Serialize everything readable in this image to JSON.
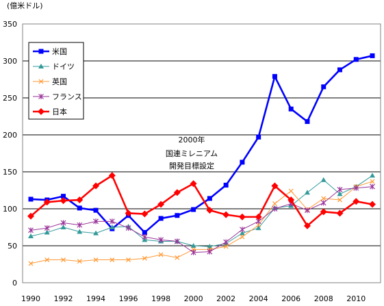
{
  "chart_data": {
    "type": "line",
    "title": "",
    "ylabel": "(億米ドル)",
    "xlabel": "",
    "x": [
      1990,
      1991,
      1992,
      1993,
      1994,
      1995,
      1996,
      1997,
      1998,
      1999,
      2000,
      2001,
      2002,
      2003,
      2004,
      2005,
      2006,
      2007,
      2008,
      2009,
      2010,
      2011
    ],
    "xticks": [
      "1990",
      "1992",
      "1994",
      "1996",
      "1998",
      "2000",
      "2002",
      "2004",
      "2006",
      "2008",
      "2010"
    ],
    "yticks": [
      "0",
      "50",
      "100",
      "150",
      "200",
      "250",
      "300",
      "350"
    ],
    "ylim": [
      0,
      350
    ],
    "grid": "horizontal",
    "legend_position": "top-left",
    "annotation": [
      "2000年",
      "国連ミレニアム",
      "開発目標設定"
    ],
    "series": [
      {
        "name": "米国",
        "color": "#0000ff",
        "marker": "square",
        "values": [
          113,
          112,
          117,
          101,
          98,
          73,
          91,
          68,
          87,
          91,
          99,
          114,
          132,
          163,
          197,
          279,
          235,
          218,
          265,
          288,
          302,
          307
        ]
      },
      {
        "name": "ドイツ",
        "color": "#339999",
        "marker": "triangle",
        "values": [
          63,
          68,
          75,
          69,
          67,
          75,
          76,
          58,
          56,
          56,
          50,
          49,
          53,
          67,
          74,
          101,
          104,
          122,
          139,
          120,
          130,
          145
        ]
      },
      {
        "name": "英国",
        "color": "#ff9933",
        "marker": "x",
        "values": [
          26,
          31,
          31,
          29,
          31,
          31,
          31,
          33,
          38,
          34,
          45,
          45,
          49,
          62,
          78,
          107,
          124,
          99,
          114,
          112,
          130,
          137
        ]
      },
      {
        "name": "フランス",
        "color": "#993399",
        "marker": "star",
        "values": [
          71,
          74,
          81,
          78,
          83,
          83,
          74,
          62,
          58,
          56,
          41,
          42,
          55,
          72,
          83,
          100,
          107,
          98,
          108,
          126,
          128,
          130
        ]
      },
      {
        "name": "日本",
        "color": "#ff0000",
        "marker": "diamond",
        "values": [
          90,
          109,
          111,
          112,
          131,
          145,
          94,
          93,
          106,
          122,
          134,
          98,
          92,
          89,
          89,
          131,
          112,
          77,
          96,
          94,
          110,
          106
        ]
      }
    ]
  }
}
